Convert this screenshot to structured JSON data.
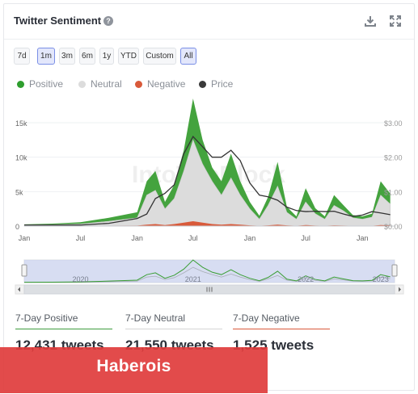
{
  "header": {
    "title": "Twitter Sentiment",
    "help_glyph": "?",
    "help_icon": "question-circle-icon",
    "download_icon": "download-icon",
    "expand_icon": "fullscreen-icon"
  },
  "range_buttons": [
    {
      "label": "7d",
      "active": false
    },
    {
      "label": "1m",
      "active": true
    },
    {
      "label": "3m",
      "active": false
    },
    {
      "label": "6m",
      "active": false
    },
    {
      "label": "1y",
      "active": false
    },
    {
      "label": "YTD",
      "active": false
    },
    {
      "label": "Custom",
      "active": false
    },
    {
      "label": "All",
      "active": true
    }
  ],
  "legend": [
    {
      "label": "Positive",
      "color": "#2e9e2e"
    },
    {
      "label": "Neutral",
      "color": "#dcdcdc"
    },
    {
      "label": "Negative",
      "color": "#d95a3a"
    },
    {
      "label": "Price",
      "color": "#3a3a3a"
    }
  ],
  "chart_data": {
    "type": "area",
    "watermark": "IntoTheBlock",
    "x_tick_labels": [
      "Jan",
      "Jul",
      "Jan",
      "Jul",
      "Jan",
      "Jul",
      "Jan"
    ],
    "y_left": {
      "ticks": [
        "15k",
        "10k",
        "5k",
        "0"
      ],
      "range": [
        0,
        15000
      ]
    },
    "y_right": {
      "ticks": [
        "$3.00",
        "$2.00",
        "$1.00",
        "$0.00"
      ],
      "range": [
        0,
        3
      ]
    },
    "x": [
      "2020-01",
      "2020-04",
      "2020-07",
      "2020-10",
      "2021-01",
      "2021-02",
      "2021-03",
      "2021-04",
      "2021-05",
      "2021-06",
      "2021-07",
      "2021-08",
      "2021-09",
      "2021-10",
      "2021-11",
      "2021-12",
      "2022-01",
      "2022-02",
      "2022-03",
      "2022-04",
      "2022-05",
      "2022-06",
      "2022-07",
      "2022-08",
      "2022-09",
      "2022-10",
      "2022-11",
      "2022-12",
      "2023-01",
      "2023-02",
      "2023-03",
      "2023-04"
    ],
    "series": [
      {
        "name": "Neutral",
        "values": [
          150,
          200,
          300,
          700,
          1200,
          4500,
          5200,
          2500,
          4000,
          8000,
          12500,
          9000,
          6500,
          4500,
          7000,
          4500,
          2500,
          1000,
          3000,
          5800,
          2000,
          1000,
          3500,
          1800,
          1000,
          3000,
          2200,
          1200,
          1000,
          1300,
          4500,
          3200
        ]
      },
      {
        "name": "Positive",
        "values": [
          100,
          150,
          250,
          500,
          800,
          2000,
          2800,
          1000,
          2000,
          3000,
          6000,
          3500,
          2000,
          2000,
          3500,
          2000,
          1000,
          500,
          1200,
          3500,
          800,
          400,
          2000,
          800,
          400,
          1500,
          800,
          400,
          400,
          500,
          2000,
          1500
        ]
      },
      {
        "name": "Negative",
        "values": [
          20,
          30,
          40,
          60,
          80,
          200,
          300,
          150,
          300,
          500,
          700,
          500,
          300,
          200,
          300,
          200,
          100,
          50,
          100,
          200,
          100,
          50,
          150,
          80,
          50,
          100,
          80,
          50,
          40,
          50,
          150,
          100
        ]
      },
      {
        "name": "Price",
        "values": [
          0.03,
          0.03,
          0.03,
          0.08,
          0.22,
          0.35,
          0.8,
          0.95,
          1.2,
          2.1,
          2.6,
          2.3,
          2.0,
          2.0,
          2.2,
          1.9,
          1.25,
          0.9,
          0.85,
          0.75,
          0.55,
          0.45,
          0.42,
          0.43,
          0.42,
          0.43,
          0.35,
          0.28,
          0.32,
          0.42,
          0.38,
          0.33
        ]
      }
    ],
    "navigator": {
      "labels": [
        "2020",
        "2021",
        "2022",
        "2023"
      ]
    }
  },
  "stats": [
    {
      "label": "7-Day Positive",
      "value": "12,431 tweets",
      "color": "#3e9c3e"
    },
    {
      "label": "7-Day Neutral",
      "value": "21,550 tweets",
      "color": "#d5d5d5"
    },
    {
      "label": "7-Day Negative",
      "value": "1,525 tweets",
      "color": "#d9583b"
    }
  ],
  "overlay": {
    "text": "Haberois",
    "color": "#df3c3c"
  }
}
